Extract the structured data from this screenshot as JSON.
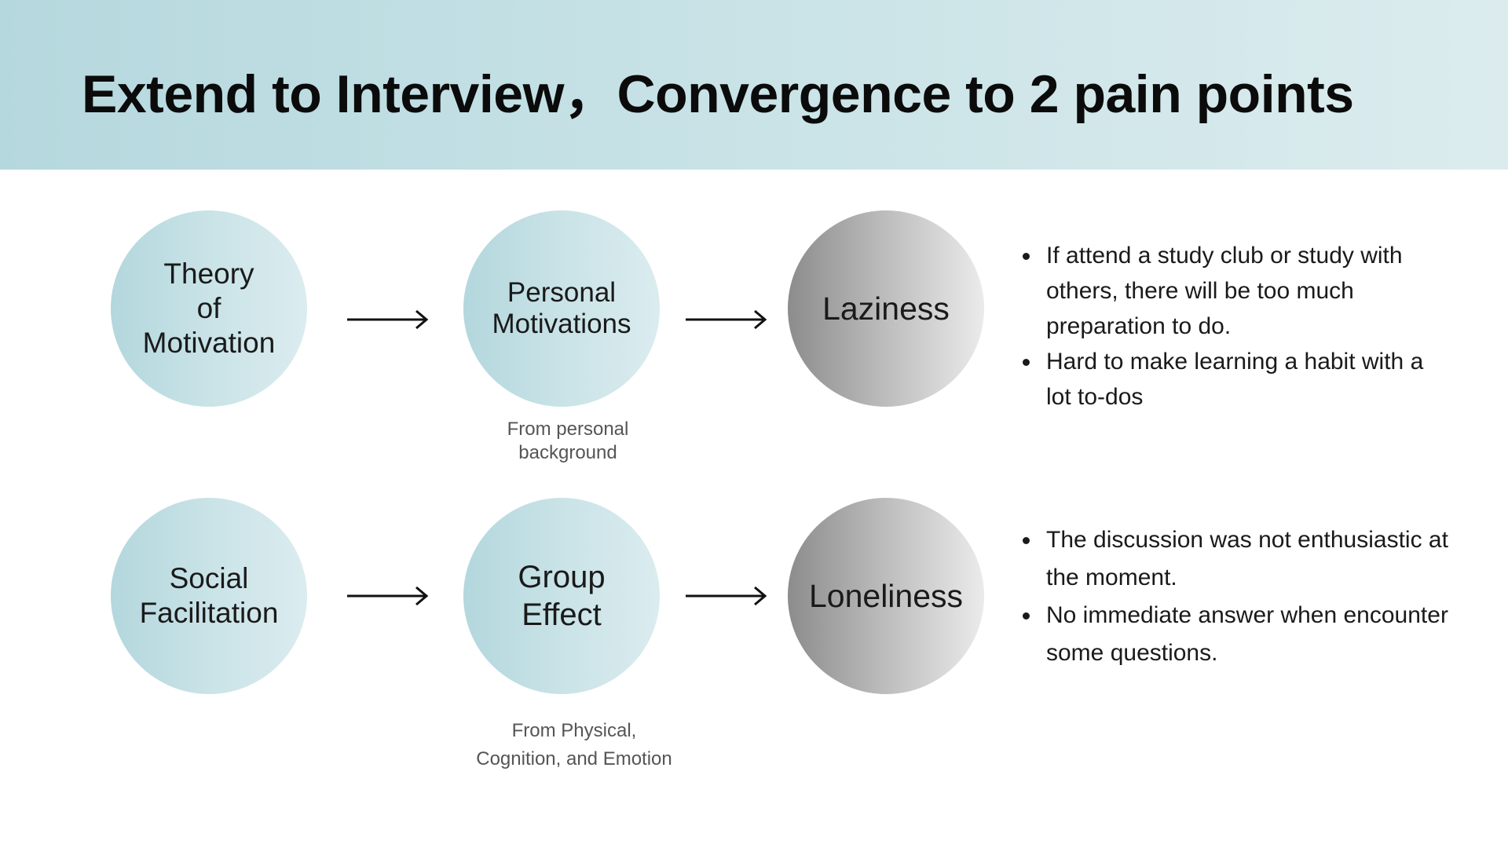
{
  "title": "Extend to Interview，Convergence to 2 pain points",
  "rows": [
    {
      "theory": "Theory\nof\nMotivation",
      "factor": "Personal\nMotivations",
      "factor_caption": "From personal\nbackground",
      "pain_point": "Laziness",
      "details": [
        "If attend a study club or study with others, there will be too much preparation to do.",
        "Hard to make learning a habit with a lot to-dos"
      ]
    },
    {
      "theory": "Social\nFacilitation",
      "factor": "Group\nEffect",
      "factor_caption": "From Physical,\nCognition, and Emotion",
      "pain_point": "Loneliness",
      "details": [
        "The discussion was not enthusiastic at the moment.",
        "No immediate answer when encounter some questions."
      ]
    }
  ],
  "colors": {
    "header_gradient_start": "#b5d8de",
    "header_gradient_end": "#dcecee",
    "teal_circle": "#c2dfe3",
    "grey_circle_start": "#8c8c8c",
    "grey_circle_end": "#ebebeb"
  },
  "icons": {
    "arrow": "right-arrow-icon"
  }
}
